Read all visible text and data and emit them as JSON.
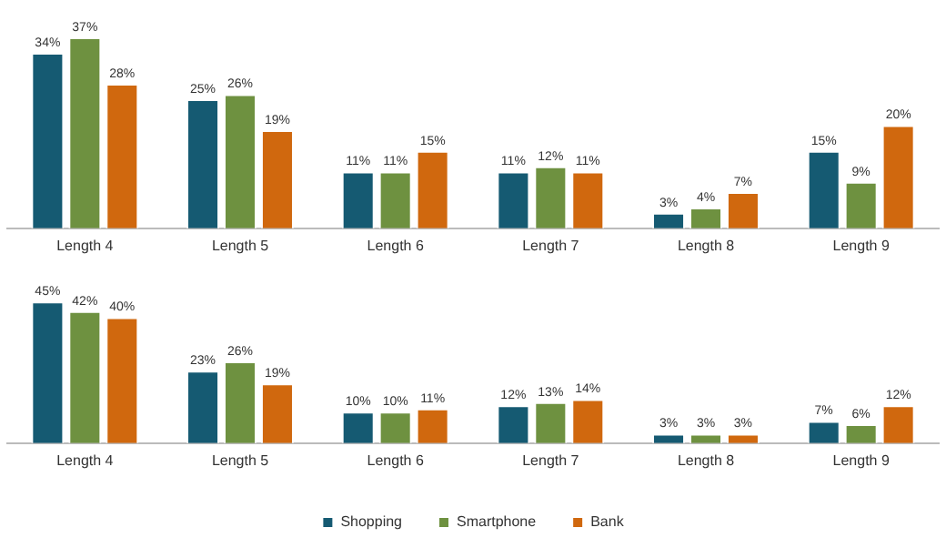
{
  "chart_data": [
    {
      "type": "bar",
      "categories": [
        "Length 4",
        "Length 5",
        "Length 6",
        "Length 7",
        "Length 8",
        "Length 9"
      ],
      "legend": false,
      "grid": false,
      "series": [
        {
          "color": "#155a72",
          "values": [
            34,
            25,
            11,
            11,
            3,
            15
          ],
          "value_labels": [
            "34%",
            "25%",
            "11%",
            "11%",
            "3%",
            "15%"
          ]
        },
        {
          "color": "#6e9140",
          "values": [
            37,
            26,
            11,
            12,
            4,
            9
          ],
          "value_labels": [
            "37%",
            "26%",
            "11%",
            "12%",
            "4%",
            "9%"
          ]
        },
        {
          "color": "#d0680e",
          "values": [
            28,
            19,
            15,
            11,
            7,
            20
          ],
          "value_labels": [
            "28%",
            "19%",
            "15%",
            "11%",
            "7%",
            "20%"
          ]
        }
      ]
    },
    {
      "type": "bar",
      "categories": [
        "Length 4",
        "Length 5",
        "Length 6",
        "Length 7",
        "Length 8",
        "Length 9"
      ],
      "legend": "bottom",
      "grid": false,
      "series": [
        {
          "name": "Shopping",
          "color": "#155a72",
          "values": [
            45,
            23,
            10,
            12,
            3,
            7
          ],
          "value_labels": [
            "45%",
            "23%",
            "10%",
            "12%",
            "3%",
            "7%"
          ]
        },
        {
          "name": "Smartphone",
          "color": "#6e9140",
          "values": [
            42,
            26,
            10,
            13,
            3,
            6
          ],
          "value_labels": [
            "42%",
            "26%",
            "10%",
            "13%",
            "3%",
            "6%"
          ]
        },
        {
          "name": "Bank",
          "color": "#d0680e",
          "values": [
            40,
            19,
            11,
            14,
            3,
            12
          ],
          "value_labels": [
            "40%",
            "19%",
            "11%",
            "14%",
            "3%",
            "12%"
          ]
        }
      ]
    }
  ]
}
